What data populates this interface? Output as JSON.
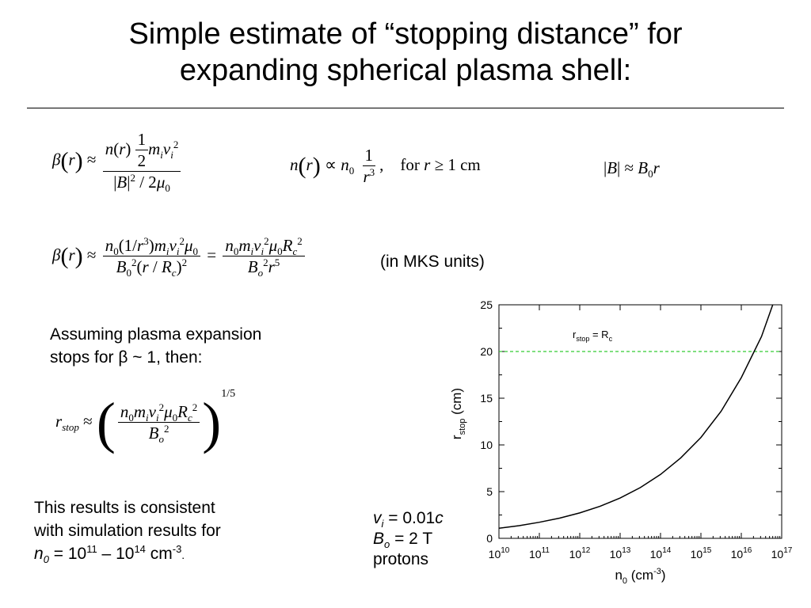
{
  "title_line1": "Simple estimate of “stopping distance” for",
  "title_line2": "expanding spherical plasma shell:",
  "eq_units_note": "(in MKS units)",
  "assume_line1": "Assuming plasma expansion",
  "assume_line2_pre": "stops for ",
  "assume_beta": "β",
  "assume_line2_post": " ~ 1, then:",
  "result_line1": "This results is consistent",
  "result_line2": "with simulation results for",
  "result_n0": "n",
  "result_n0_sub": "0",
  "result_eq": " = 10",
  "result_exp1": "11",
  "result_dash": " – 10",
  "result_exp2": "14",
  "result_unit": " cm",
  "result_unit_exp": "-3",
  "result_period": ".",
  "params": {
    "vi_sym": "v",
    "vi_sub": "i",
    "vi_val": " = 0.01",
    "vi_c": "c",
    "bo_sym": "B",
    "bo_sub": "o",
    "bo_val": " = 2 T",
    "particle": "protons"
  },
  "chart_data": {
    "type": "line",
    "x_scale": "log",
    "xlim": [
      10000000000.0,
      1e+17
    ],
    "ylim": [
      0,
      25
    ],
    "x_ticks": [
      10000000000.0,
      100000000000.0,
      1000000000000.0,
      10000000000000.0,
      100000000000000.0,
      1000000000000000.0,
      1e+16,
      1e+17
    ],
    "x_tick_exponents": [
      "10",
      "11",
      "12",
      "13",
      "14",
      "15",
      "16",
      "17"
    ],
    "y_ticks": [
      0,
      5,
      10,
      15,
      20,
      25
    ],
    "xlabel": "n0 (cm-3)",
    "ylabel": "rstop (cm)",
    "series": [
      {
        "x": [
          10000000000.0,
          31600000000.0,
          100000000000.0,
          316000000000.0,
          1000000000000.0,
          3160000000000.0,
          10000000000000.0,
          31600000000000.0,
          100000000000000.0,
          316000000000000.0,
          1000000000000000.0,
          3160000000000000.0,
          1e+16,
          3.16e+16,
          6e+16
        ],
        "y": [
          1.08,
          1.36,
          1.72,
          2.16,
          2.72,
          3.42,
          4.31,
          5.43,
          6.84,
          8.61,
          10.8,
          13.6,
          17.2,
          21.6,
          25.0
        ],
        "color": "#000000"
      }
    ],
    "reference_line": {
      "y": 20,
      "label": "rstop = Rc",
      "color": "#33cc33",
      "style": "dashed"
    }
  }
}
